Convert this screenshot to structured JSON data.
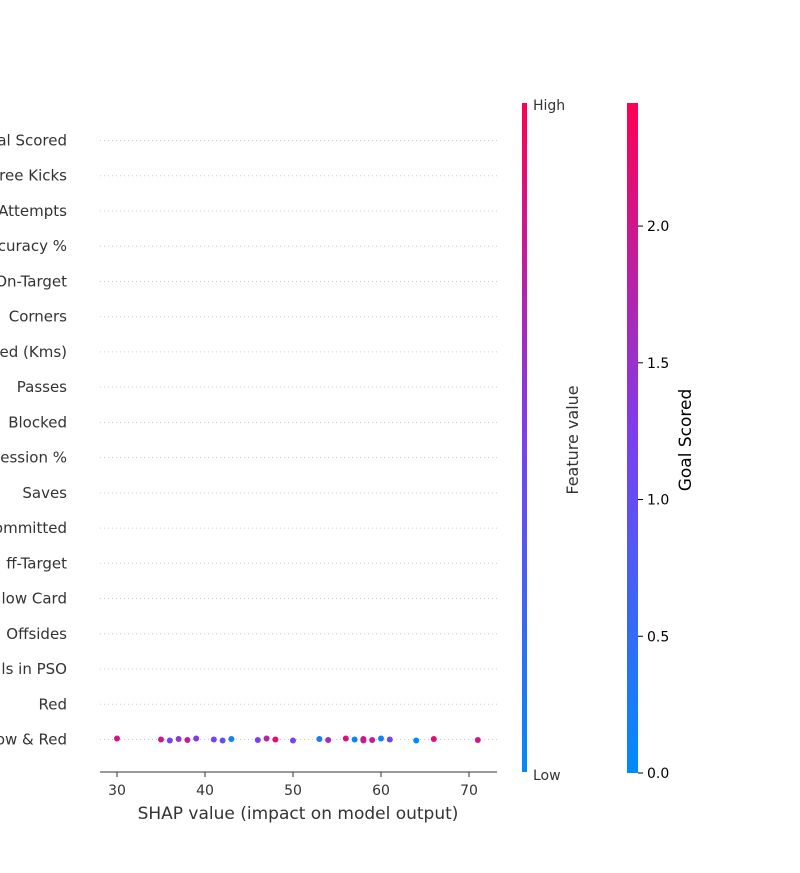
{
  "chart_data": {
    "type": "scatter",
    "title": "",
    "xlabel": "SHAP value (impact on model output)",
    "xlim": [
      29,
      73
    ],
    "xticks": [
      30,
      40,
      50,
      60,
      70
    ],
    "features": [
      "al Scored",
      "ree Kicks",
      "Attempts",
      "curacy %",
      "On-Target",
      "Corners",
      "ed (Kms)",
      "Passes",
      "Blocked",
      "ession %",
      "Saves",
      "ommitted",
      "ff-Target",
      "low Card",
      "Offsides",
      "ls in PSO",
      "Red",
      "ow & Red"
    ],
    "points_feature": "ow & Red",
    "points": [
      {
        "x": 30.0,
        "v": 2.1
      },
      {
        "x": 35.0,
        "v": 2.0
      },
      {
        "x": 36.0,
        "v": 1.2
      },
      {
        "x": 37.0,
        "v": 1.4
      },
      {
        "x": 38.0,
        "v": 1.9
      },
      {
        "x": 39.0,
        "v": 1.3
      },
      {
        "x": 41.0,
        "v": 1.1
      },
      {
        "x": 42.0,
        "v": 1.0
      },
      {
        "x": 43.0,
        "v": 0.2
      },
      {
        "x": 46.0,
        "v": 1.2
      },
      {
        "x": 47.0,
        "v": 1.8
      },
      {
        "x": 48.0,
        "v": 2.2
      },
      {
        "x": 50.0,
        "v": 1.2
      },
      {
        "x": 53.0,
        "v": 0.3
      },
      {
        "x": 54.0,
        "v": 1.6
      },
      {
        "x": 56.0,
        "v": 2.1
      },
      {
        "x": 57.0,
        "v": 0.1
      },
      {
        "x": 58.0,
        "v": 1.5
      },
      {
        "x": 58.0,
        "v": 2.0
      },
      {
        "x": 59.0,
        "v": 1.9
      },
      {
        "x": 60.0,
        "v": 0.2
      },
      {
        "x": 61.0,
        "v": 1.1
      },
      {
        "x": 64.0,
        "v": 0.0
      },
      {
        "x": 66.0,
        "v": 2.2
      },
      {
        "x": 71.0,
        "v": 2.0
      }
    ],
    "colorbar_feature_value": {
      "label": "Feature value",
      "high": "High",
      "low": "Low"
    },
    "colorbar_goal_scored": {
      "label": "Goal Scored",
      "range": [
        0,
        2.45
      ],
      "ticks": [
        "0.0",
        "0.5",
        "1.0",
        "1.5",
        "2.0"
      ]
    },
    "colors": {
      "low": "#008bfb",
      "mid": "#7b3ff0",
      "high": "#ff0052",
      "grid": "#cccccc",
      "axis": "#333333"
    }
  }
}
